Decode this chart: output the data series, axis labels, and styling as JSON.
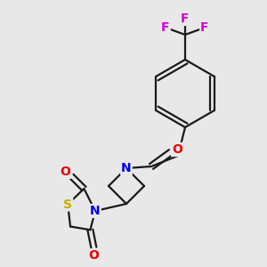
{
  "background_color": "#e8e8e8",
  "bond_color": "#1a1a1a",
  "atom_colors": {
    "N": "#0000ee",
    "O": "#ee0000",
    "S": "#ccaa00",
    "F": "#dd00dd",
    "C": "#1a1a1a"
  },
  "figsize": [
    3.0,
    3.0
  ],
  "dpi": 100,
  "lw": 1.6,
  "fs": 10
}
